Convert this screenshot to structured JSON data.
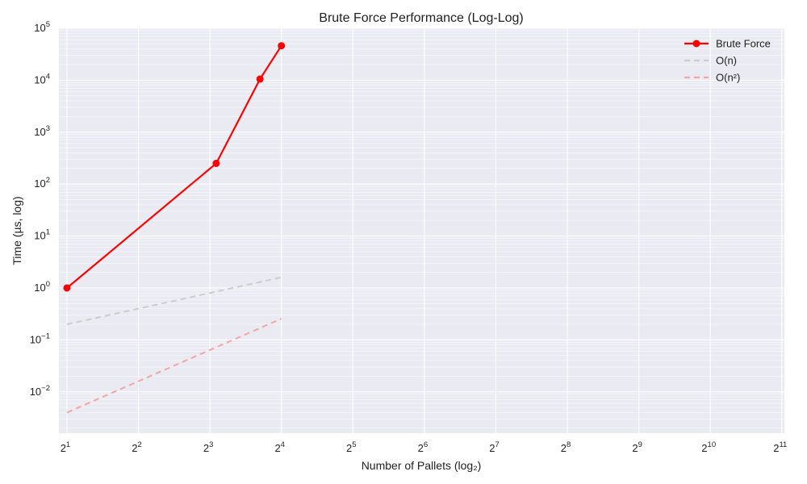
{
  "chart_data": {
    "type": "line",
    "title": "Brute Force Performance (Log-Log)",
    "xlabel": "Number of Pallets (log₂)",
    "ylabel": "Time (µs, log)",
    "x_scale": "log2",
    "y_scale": "log10",
    "xlim": [
      1.85,
      2100
    ],
    "ylim": [
      0.0016,
      100000
    ],
    "grid": true,
    "legend_position": "top-right",
    "x_ticks": [
      {
        "value": 2,
        "base": "2",
        "exp": "1"
      },
      {
        "value": 4,
        "base": "2",
        "exp": "2"
      },
      {
        "value": 8,
        "base": "2",
        "exp": "3"
      },
      {
        "value": 16,
        "base": "2",
        "exp": "4"
      },
      {
        "value": 32,
        "base": "2",
        "exp": "5"
      },
      {
        "value": 64,
        "base": "2",
        "exp": "6"
      },
      {
        "value": 128,
        "base": "2",
        "exp": "7"
      },
      {
        "value": 256,
        "base": "2",
        "exp": "8"
      },
      {
        "value": 512,
        "base": "2",
        "exp": "9"
      },
      {
        "value": 1024,
        "base": "2",
        "exp": "10"
      },
      {
        "value": 2048,
        "base": "2",
        "exp": "11"
      }
    ],
    "y_ticks": [
      {
        "value": 0.01,
        "base": "10",
        "exp": "−2"
      },
      {
        "value": 0.1,
        "base": "10",
        "exp": "−1"
      },
      {
        "value": 1,
        "base": "10",
        "exp": "0"
      },
      {
        "value": 10,
        "base": "10",
        "exp": "1"
      },
      {
        "value": 100,
        "base": "10",
        "exp": "2"
      },
      {
        "value": 1000,
        "base": "10",
        "exp": "3"
      },
      {
        "value": 10000,
        "base": "10",
        "exp": "4"
      },
      {
        "value": 100000,
        "base": "10",
        "exp": "5"
      }
    ],
    "series": [
      {
        "name": "Brute Force",
        "color": "#ff0000",
        "style": "solid",
        "markers": true,
        "points": [
          {
            "x": 2,
            "y": 1.0
          },
          {
            "x": 8.5,
            "y": 250
          },
          {
            "x": 13,
            "y": 10500
          },
          {
            "x": 16,
            "y": 46000
          }
        ]
      },
      {
        "name": "O(n)",
        "color": "#cccccc",
        "style": "dashed",
        "markers": false,
        "points": [
          {
            "x": 2,
            "y": 0.2
          },
          {
            "x": 16,
            "y": 1.6
          }
        ]
      },
      {
        "name": "O(n²)",
        "color": "#f4a6a6",
        "style": "dashed",
        "markers": false,
        "points": [
          {
            "x": 2,
            "y": 0.004
          },
          {
            "x": 16,
            "y": 0.256
          }
        ]
      }
    ]
  }
}
